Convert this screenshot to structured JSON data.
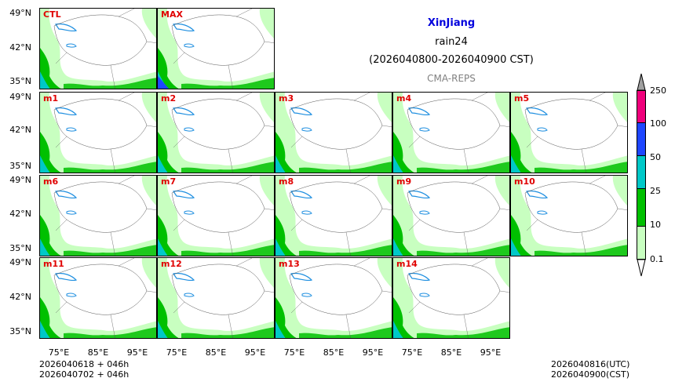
{
  "title": {
    "region": "XinJiang",
    "variable": "rain24",
    "period": "(2026040800-2026040900 CST)",
    "model": "CMA-REPS"
  },
  "panels": [
    "CTL",
    "MAX",
    "m1",
    "m2",
    "m3",
    "m4",
    "m5",
    "m6",
    "m7",
    "m8",
    "m9",
    "m10",
    "m11",
    "m12",
    "m13",
    "m14"
  ],
  "axes": {
    "lat_ticks": [
      "49°N",
      "42°N",
      "35°N"
    ],
    "lon_ticks": [
      "75°E",
      "85°E",
      "95°E"
    ]
  },
  "colorbar": {
    "levels": [
      "0.1",
      "10",
      "25",
      "50",
      "100",
      "250"
    ],
    "colors": [
      "#c8ffc0",
      "#00c000",
      "#00c8c8",
      "#1e46ff",
      "#f0007c"
    ],
    "over_color": "#a0a0a0",
    "under_color": "#ffffff"
  },
  "footer": {
    "init_line1": "2026040618  +  046h",
    "init_line2": "2026040702  +  046h",
    "valid_utc": "2026040816(UTC)",
    "valid_cst": "2026040900(CST)"
  }
}
